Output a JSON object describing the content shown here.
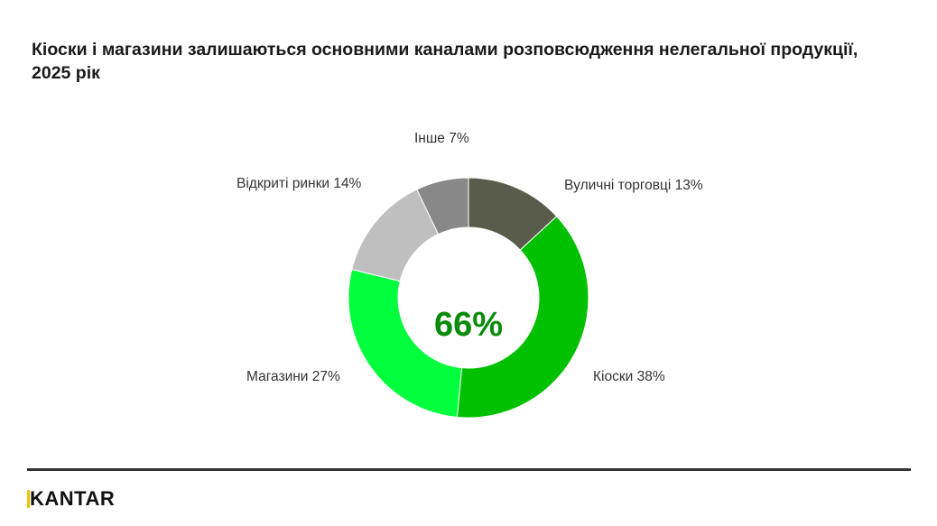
{
  "title": "Кіоски і магазини залишаються основними каналами розповсюдження нелегальної продукції, 2025 рік",
  "center_label": "66%",
  "labels": {
    "street_vendors": "Вуличні торговці 13%",
    "kiosks": "Кіоски 38%",
    "shops": "Магазини 27%",
    "open_markets": "Відкриті ринки 14%",
    "other": "Інше 7%"
  },
  "logo": {
    "text": "ANTAR",
    "accent_letter": "K",
    "accent_color": "#e8c400"
  },
  "colors": {
    "street_vendors": "#5a5c4b",
    "kiosks": "#00c000",
    "shops": "#00ff3c",
    "open_markets": "#bfbfbf",
    "other": "#888888",
    "center_value": "#0a8a0a"
  },
  "chart_data": {
    "type": "pie",
    "subtype": "donut",
    "title": "Кіоски і магазини залишаються основними каналами розповсюдження нелегальної продукції, 2025 рік",
    "categories": [
      "Вуличні торговці",
      "Кіоски",
      "Магазини",
      "Відкриті ринки",
      "Інше"
    ],
    "values": [
      13,
      38,
      27,
      14,
      7
    ],
    "unit": "%",
    "colors": [
      "#5a5c4b",
      "#00c000",
      "#00ff3c",
      "#bfbfbf",
      "#888888"
    ],
    "center_annotation": "66%",
    "start_angle_deg": 0,
    "direction": "clockwise",
    "legend": "none (data labels outside segments)"
  }
}
